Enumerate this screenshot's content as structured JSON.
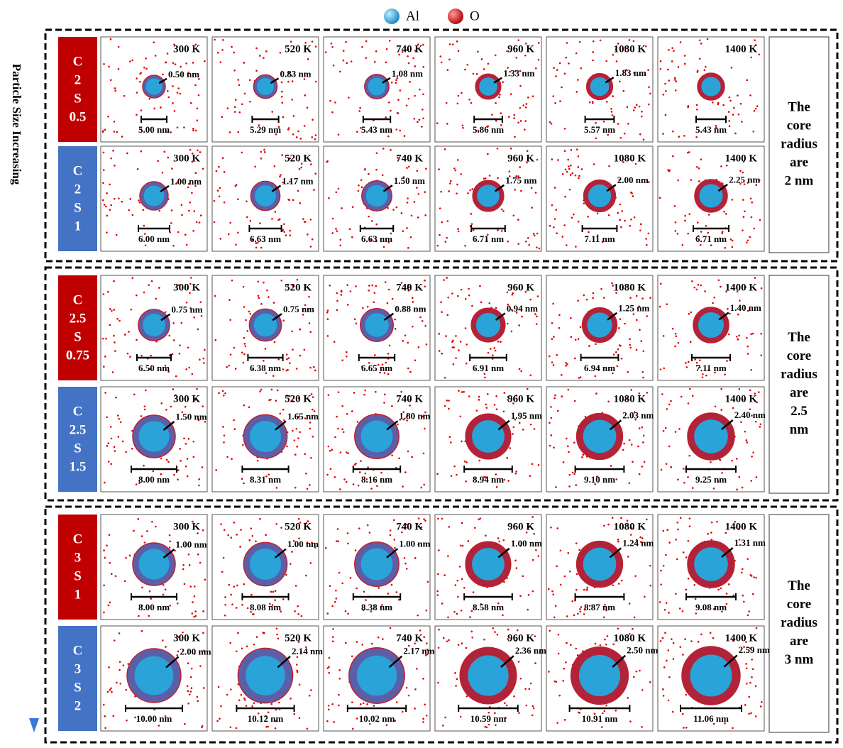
{
  "legend": {
    "items": [
      "Al",
      "O"
    ]
  },
  "side_label": "Particle Size Increasing",
  "groups": [
    {
      "note": [
        "The",
        "core",
        "radius",
        "are",
        "2 nm"
      ],
      "rows": [
        {
          "label": [
            "C",
            "2",
            "S",
            "0.5"
          ],
          "color": "#c00000",
          "panels": [
            {
              "temp": "300 K",
              "shell": "0.50 nm",
              "diameter": "5.00 nm"
            },
            {
              "temp": "520 K",
              "shell": "0.83 nm",
              "diameter": "5.29 nm"
            },
            {
              "temp": "740 K",
              "shell": "1.08 nm",
              "diameter": "5.43 nm"
            },
            {
              "temp": "960 K",
              "shell": "1.33 nm",
              "diameter": "5.86 nm"
            },
            {
              "temp": "1080 K",
              "shell": "1.83 nm",
              "diameter": "5.57 nm"
            },
            {
              "temp": "1400 K",
              "diameter": "5.43 nm"
            }
          ]
        },
        {
          "label": [
            "C",
            "2",
            "S",
            "1"
          ],
          "color": "#4472c4",
          "panels": [
            {
              "temp": "300 K",
              "shell": "1.00 nm",
              "diameter": "6.00 nm"
            },
            {
              "temp": "520 K",
              "shell": "1.17 nm",
              "diameter": "6.63 nm"
            },
            {
              "temp": "740 K",
              "shell": "1.50 nm",
              "diameter": "6.63 nm"
            },
            {
              "temp": "960 K",
              "shell": "1.75 nm",
              "diameter": "6.71 nm"
            },
            {
              "temp": "1080 K",
              "shell": "2.00 nm",
              "diameter": "7.11 nm"
            },
            {
              "temp": "1400 K",
              "shell": "2.25 nm",
              "diameter": "6.71 nm"
            }
          ]
        }
      ]
    },
    {
      "note": [
        "The",
        "core",
        "radius",
        "are",
        "2.5",
        "nm"
      ],
      "rows": [
        {
          "label": [
            "C",
            "2.5",
            "S",
            "0.75"
          ],
          "color": "#c00000",
          "panels": [
            {
              "temp": "300 K",
              "shell": "0.75 nm",
              "diameter": "6.50 nm"
            },
            {
              "temp": "520 K",
              "shell": "0.75 nm",
              "diameter": "6.38 nm"
            },
            {
              "temp": "740 K",
              "shell": "0.88 nm",
              "diameter": "6.65 nm"
            },
            {
              "temp": "960 K",
              "shell": "0.94 nm",
              "diameter": "6.91 nm"
            },
            {
              "temp": "1080 K",
              "shell": "1.25 nm",
              "diameter": "6.94 nm"
            },
            {
              "temp": "1400 K",
              "shell": "1.40 nm",
              "diameter": "7.11 nm"
            }
          ]
        },
        {
          "label": [
            "C",
            "2.5",
            "S",
            "1.5"
          ],
          "color": "#4472c4",
          "panels": [
            {
              "temp": "300 K",
              "shell": "1.50 nm",
              "diameter": "8.00 nm"
            },
            {
              "temp": "520 K",
              "shell": "1.65 nm",
              "diameter": "8.31 nm"
            },
            {
              "temp": "740 K",
              "shell": "1.80 nm",
              "diameter": "8.16 nm"
            },
            {
              "temp": "960 K",
              "shell": "1.95 nm",
              "diameter": "8.94 nm"
            },
            {
              "temp": "1080 K",
              "shell": "2.03 nm",
              "diameter": "9.10 nm"
            },
            {
              "temp": "1400 K",
              "shell": "2.40 nm",
              "diameter": "9.25 nm"
            }
          ]
        }
      ]
    },
    {
      "note": [
        "The",
        "core",
        "radius",
        "are",
        "3 nm"
      ],
      "rows": [
        {
          "label": [
            "C",
            "3",
            "S",
            "1"
          ],
          "color": "#c00000",
          "panels": [
            {
              "temp": "300 K",
              "shell": "1.00 nm",
              "diameter": "8.00 nm"
            },
            {
              "temp": "520 K",
              "shell": "1.00 nm",
              "diameter": "8.08 nm"
            },
            {
              "temp": "740 K",
              "shell": "1.00 nm",
              "diameter": "8.38 nm"
            },
            {
              "temp": "960 K",
              "shell": "1.00 nm",
              "diameter": "8.58 nm"
            },
            {
              "temp": "1080 K",
              "shell": "1.24 nm",
              "diameter": "8.87 nm"
            },
            {
              "temp": "1400 K",
              "shell": "1.31 nm",
              "diameter": "9.08 nm"
            }
          ]
        },
        {
          "label": [
            "C",
            "3",
            "S",
            "2"
          ],
          "color": "#4472c4",
          "panels": [
            {
              "temp": "300 K",
              "shell": "2.00 nm",
              "diameter": "10.00 nm"
            },
            {
              "temp": "520 K",
              "shell": "2.14 nm",
              "diameter": "10.12 nm"
            },
            {
              "temp": "740 K",
              "shell": "2.17 nm",
              "diameter": "10.02 nm"
            },
            {
              "temp": "960 K",
              "shell": "2.36 nm",
              "diameter": "10.59 nm"
            },
            {
              "temp": "1080 K",
              "shell": "2.50 nm",
              "diameter": "10.91 nm"
            },
            {
              "temp": "1400 K",
              "shell": "2.59 nm",
              "diameter": "11.06 nm"
            }
          ]
        }
      ]
    }
  ]
}
